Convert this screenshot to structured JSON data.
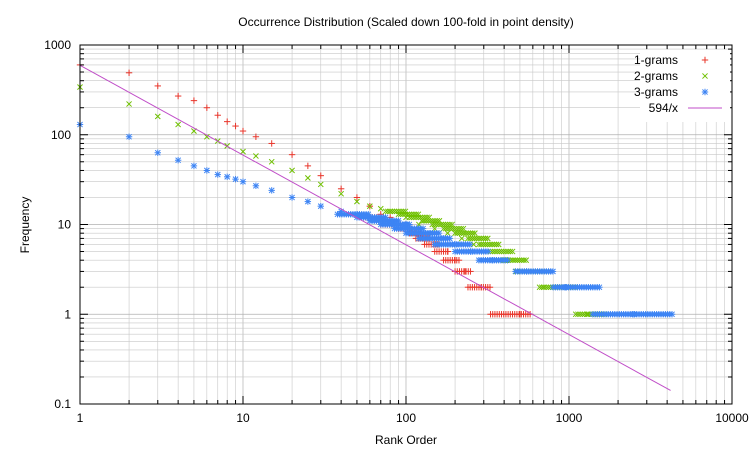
{
  "chart_data": {
    "type": "scatter",
    "title": "Occurrence Distribution (Scaled down 100-fold in point density)",
    "xlabel": "Rank Order",
    "ylabel": "Frequency",
    "xscale": "log",
    "yscale": "log",
    "xlim": [
      1,
      10000
    ],
    "ylim": [
      0.1,
      1000
    ],
    "x_ticks": [
      1,
      10,
      100,
      1000,
      10000
    ],
    "x_tick_labels": [
      "1",
      "10",
      "100",
      "1000",
      "10000"
    ],
    "y_ticks": [
      0.1,
      1,
      10,
      100,
      1000
    ],
    "y_tick_labels": [
      "0.1",
      "1",
      "10",
      "100",
      "1000"
    ],
    "grid": true,
    "legend_position": "top-right",
    "series": [
      {
        "name": "1-grams",
        "marker": "plus",
        "color": "#e8352a",
        "values": [
          [
            1,
            600
          ],
          [
            2,
            490
          ],
          [
            3,
            350
          ],
          [
            4,
            270
          ],
          [
            5,
            240
          ],
          [
            6,
            200
          ],
          [
            7,
            165
          ],
          [
            8,
            140
          ],
          [
            9,
            125
          ],
          [
            10,
            110
          ],
          [
            12,
            95
          ],
          [
            15,
            80
          ],
          [
            20,
            60
          ],
          [
            25,
            45
          ],
          [
            30,
            35
          ],
          [
            40,
            25
          ],
          [
            50,
            20
          ],
          [
            60,
            16
          ],
          [
            70,
            13
          ],
          [
            80,
            12
          ],
          [
            90,
            10
          ],
          [
            100,
            9
          ],
          [
            120,
            8
          ],
          [
            140,
            7
          ],
          [
            160,
            6
          ],
          [
            180,
            5
          ],
          [
            200,
            4
          ],
          [
            230,
            3
          ],
          [
            290,
            2
          ],
          [
            500,
            1
          ]
        ],
        "runs": [
          {
            "y": 12,
            "x": [
              55,
              70
            ]
          },
          {
            "y": 10,
            "x": [
              70,
              95
            ]
          },
          {
            "y": 9,
            "x": [
              90,
              110
            ]
          },
          {
            "y": 8,
            "x": [
              105,
              125
            ]
          },
          {
            "y": 7,
            "x": [
              115,
              140
            ]
          },
          {
            "y": 6,
            "x": [
              130,
              160
            ]
          },
          {
            "y": 5,
            "x": [
              150,
              185
            ]
          },
          {
            "y": 4,
            "x": [
              170,
              215
            ]
          },
          {
            "y": 3,
            "x": [
              200,
              255
            ]
          },
          {
            "y": 2,
            "x": [
              240,
              330
            ]
          },
          {
            "y": 1,
            "x": [
              330,
              590
            ]
          }
        ]
      },
      {
        "name": "2-grams",
        "marker": "cross",
        "color": "#6fc000",
        "values": [
          [
            1,
            340
          ],
          [
            2,
            220
          ],
          [
            3,
            160
          ],
          [
            4,
            130
          ],
          [
            5,
            110
          ],
          [
            6,
            95
          ],
          [
            7,
            85
          ],
          [
            8,
            75
          ],
          [
            10,
            65
          ],
          [
            12,
            58
          ],
          [
            15,
            50
          ],
          [
            20,
            40
          ],
          [
            25,
            33
          ],
          [
            30,
            28
          ],
          [
            40,
            22
          ],
          [
            50,
            18
          ],
          [
            60,
            16
          ],
          [
            70,
            15
          ],
          [
            80,
            14
          ],
          [
            100,
            12
          ],
          [
            120,
            10
          ],
          [
            150,
            9
          ],
          [
            180,
            8
          ],
          [
            220,
            7
          ],
          [
            260,
            6
          ],
          [
            300,
            5
          ],
          [
            380,
            4
          ],
          [
            480,
            3
          ],
          [
            700,
            2
          ],
          [
            1300,
            1
          ]
        ],
        "runs": [
          {
            "y": 14,
            "x": [
              75,
              100
            ]
          },
          {
            "y": 13,
            "x": [
              90,
              120
            ]
          },
          {
            "y": 12,
            "x": [
              105,
              140
            ]
          },
          {
            "y": 11,
            "x": [
              125,
              165
            ]
          },
          {
            "y": 10,
            "x": [
              145,
              195
            ]
          },
          {
            "y": 9,
            "x": [
              170,
              230
            ]
          },
          {
            "y": 8,
            "x": [
              200,
              270
            ]
          },
          {
            "y": 7,
            "x": [
              240,
              320
            ]
          },
          {
            "y": 6,
            "x": [
              280,
              380
            ]
          },
          {
            "y": 5,
            "x": [
              330,
              460
            ]
          },
          {
            "y": 4,
            "x": [
              400,
              560
            ]
          },
          {
            "y": 3,
            "x": [
              470,
              740
            ]
          },
          {
            "y": 2,
            "x": [
              660,
              1110
            ]
          },
          {
            "y": 1,
            "x": [
              1100,
              1650
            ]
          }
        ]
      },
      {
        "name": "3-grams",
        "marker": "star",
        "color": "#3d84f4",
        "values": [
          [
            1,
            130
          ],
          [
            2,
            95
          ],
          [
            3,
            63
          ],
          [
            4,
            52
          ],
          [
            5,
            45
          ],
          [
            6,
            40
          ],
          [
            7,
            36
          ],
          [
            8,
            34
          ],
          [
            9,
            32
          ],
          [
            10,
            30
          ],
          [
            12,
            27
          ],
          [
            15,
            24
          ],
          [
            20,
            20
          ],
          [
            25,
            18
          ],
          [
            30,
            16
          ],
          [
            40,
            14
          ],
          [
            50,
            13
          ],
          [
            60,
            12
          ],
          [
            80,
            11
          ],
          [
            100,
            10
          ],
          [
            120,
            9
          ],
          [
            140,
            8
          ],
          [
            170,
            7
          ],
          [
            200,
            6
          ],
          [
            250,
            5
          ],
          [
            340,
            4
          ],
          [
            550,
            3
          ],
          [
            950,
            2
          ],
          [
            2500,
            1
          ]
        ],
        "runs": [
          {
            "y": 13,
            "x": [
              38,
              60
            ]
          },
          {
            "y": 12,
            "x": [
              50,
              75
            ]
          },
          {
            "y": 11,
            "x": [
              60,
              90
            ]
          },
          {
            "y": 10,
            "x": [
              70,
              105
            ]
          },
          {
            "y": 9,
            "x": [
              85,
              130
            ]
          },
          {
            "y": 8,
            "x": [
              100,
              160
            ]
          },
          {
            "y": 7,
            "x": [
              120,
              190
            ]
          },
          {
            "y": 6,
            "x": [
              150,
              250
            ]
          },
          {
            "y": 5,
            "x": [
              200,
              320
            ]
          },
          {
            "y": 4,
            "x": [
              280,
              420
            ]
          },
          {
            "y": 3,
            "x": [
              470,
              800
            ]
          },
          {
            "y": 2,
            "x": [
              800,
              1550
            ]
          },
          {
            "y": 1,
            "x": [
              1400,
              4300
            ]
          }
        ]
      },
      {
        "name": "594/x",
        "type": "line",
        "color": "#c04ec8",
        "function": "594/x",
        "x_range": [
          1,
          4200
        ]
      }
    ]
  }
}
